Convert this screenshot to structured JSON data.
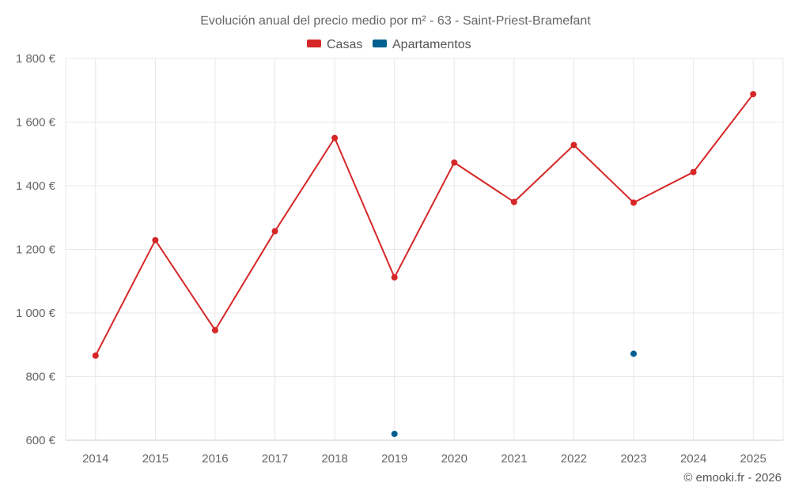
{
  "chart_data": {
    "type": "line",
    "title": "Evolución anual del precio medio por m² - 63 - Saint-Priest-Bramefant",
    "categories": [
      "2014",
      "2015",
      "2016",
      "2017",
      "2018",
      "2019",
      "2020",
      "2021",
      "2022",
      "2023",
      "2024",
      "2025"
    ],
    "series": [
      {
        "name": "Casas",
        "color": "#d62728",
        "values": [
          866,
          1229,
          946,
          1257,
          1550,
          1112,
          1473,
          1349,
          1528,
          1347,
          1443,
          1688
        ]
      },
      {
        "name": "Apartamentos",
        "color": "#005f8f",
        "values": [
          null,
          null,
          null,
          null,
          null,
          620,
          null,
          null,
          null,
          872,
          null,
          null
        ]
      }
    ],
    "y_ticks": [
      "600 €",
      "800 €",
      "1 000 €",
      "1 200 €",
      "1 400 €",
      "1 600 €",
      "1 800 €"
    ],
    "y_tick_values": [
      600,
      800,
      1000,
      1200,
      1400,
      1600,
      1800
    ],
    "ylim": [
      600,
      1800
    ],
    "xlabel": "",
    "ylabel": "",
    "grid": true,
    "legend_position": "top-center"
  },
  "credit": "© emooki.fr - 2026"
}
